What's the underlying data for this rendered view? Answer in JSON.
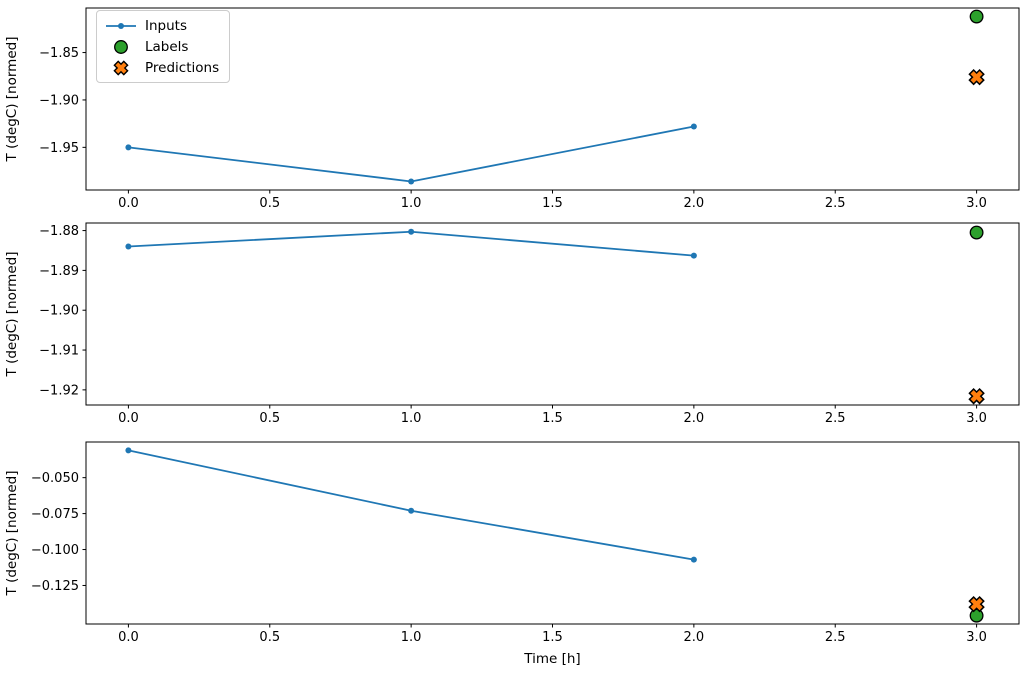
{
  "xlabel": "Time [h]",
  "colors": {
    "inputs": "#1f77b4",
    "labels": "#2ca02c",
    "predictions": "#ff7f0e",
    "marker_edge": "#000000",
    "axis": "#000000",
    "legend_border": "#cccccc"
  },
  "legend": {
    "items": [
      {
        "label": "Inputs",
        "marker": "line+dot",
        "color": "#1f77b4"
      },
      {
        "label": "Labels",
        "marker": "circle",
        "color": "#2ca02c",
        "edge": "#000000"
      },
      {
        "label": "Predictions",
        "marker": "X",
        "color": "#ff7f0e",
        "edge": "#000000"
      }
    ]
  },
  "chart_data": [
    {
      "type": "line",
      "title": "",
      "xlabel": "",
      "ylabel": "T (degC) [normed]",
      "xlim": [
        -0.15,
        3.15
      ],
      "ylim": [
        -1.995,
        -1.803
      ],
      "x_ticks": [
        0,
        0.5,
        1,
        1.5,
        2,
        2.5,
        3
      ],
      "x_tick_labels": [
        "0.0",
        "0.5",
        "1.0",
        "1.5",
        "2.0",
        "2.5",
        "3.0"
      ],
      "y_ticks": [
        -1.85,
        -1.9,
        -1.95
      ],
      "y_tick_labels": [
        "−1.85",
        "−1.90",
        "−1.95"
      ],
      "grid": false,
      "legend_position": "upper left",
      "series": [
        {
          "name": "Inputs",
          "marker": "dot",
          "color": "#1f77b4",
          "x": [
            0,
            1,
            2
          ],
          "y": [
            -1.95,
            -1.986,
            -1.928
          ]
        },
        {
          "name": "Labels",
          "marker": "circle",
          "color": "#2ca02c",
          "edge": "#000000",
          "x": [
            3
          ],
          "y": [
            -1.812
          ]
        },
        {
          "name": "Predictions",
          "marker": "X",
          "color": "#ff7f0e",
          "edge": "#000000",
          "x": [
            3
          ],
          "y": [
            -1.876
          ]
        }
      ]
    },
    {
      "type": "line",
      "title": "",
      "xlabel": "",
      "ylabel": "T (degC) [normed]",
      "xlim": [
        -0.15,
        3.15
      ],
      "ylim": [
        -1.9238,
        -1.8781
      ],
      "x_ticks": [
        0,
        0.5,
        1,
        1.5,
        2,
        2.5,
        3
      ],
      "x_tick_labels": [
        "0.0",
        "0.5",
        "1.0",
        "1.5",
        "2.0",
        "2.5",
        "3.0"
      ],
      "y_ticks": [
        -1.88,
        -1.89,
        -1.9,
        -1.91,
        -1.92
      ],
      "y_tick_labels": [
        "−1.88",
        "−1.89",
        "−1.90",
        "−1.91",
        "−1.92"
      ],
      "grid": false,
      "series": [
        {
          "name": "Inputs",
          "marker": "dot",
          "color": "#1f77b4",
          "x": [
            0,
            1,
            2
          ],
          "y": [
            -1.884,
            -1.8803,
            -1.8863
          ]
        },
        {
          "name": "Labels",
          "marker": "circle",
          "color": "#2ca02c",
          "edge": "#000000",
          "x": [
            3
          ],
          "y": [
            -1.8805
          ]
        },
        {
          "name": "Predictions",
          "marker": "X",
          "color": "#ff7f0e",
          "edge": "#000000",
          "x": [
            3
          ],
          "y": [
            -1.9216
          ]
        }
      ]
    },
    {
      "type": "line",
      "title": "",
      "xlabel": "Time [h]",
      "ylabel": "T (degC) [normed]",
      "xlim": [
        -0.15,
        3.15
      ],
      "ylim": [
        -0.1518,
        -0.0252
      ],
      "x_ticks": [
        0,
        0.5,
        1,
        1.5,
        2,
        2.5,
        3
      ],
      "x_tick_labels": [
        "0.0",
        "0.5",
        "1.0",
        "1.5",
        "2.0",
        "2.5",
        "3.0"
      ],
      "y_ticks": [
        -0.05,
        -0.075,
        -0.1,
        -0.125
      ],
      "y_tick_labels": [
        "−0.050",
        "−0.075",
        "−0.100",
        "−0.125"
      ],
      "grid": false,
      "series": [
        {
          "name": "Inputs",
          "marker": "dot",
          "color": "#1f77b4",
          "x": [
            0,
            1,
            2
          ],
          "y": [
            -0.031,
            -0.073,
            -0.107
          ]
        },
        {
          "name": "Labels",
          "marker": "circle",
          "color": "#2ca02c",
          "edge": "#000000",
          "x": [
            3
          ],
          "y": [
            -0.146
          ]
        },
        {
          "name": "Predictions",
          "marker": "X",
          "color": "#ff7f0e",
          "edge": "#000000",
          "x": [
            3
          ],
          "y": [
            -0.138
          ]
        }
      ]
    }
  ]
}
